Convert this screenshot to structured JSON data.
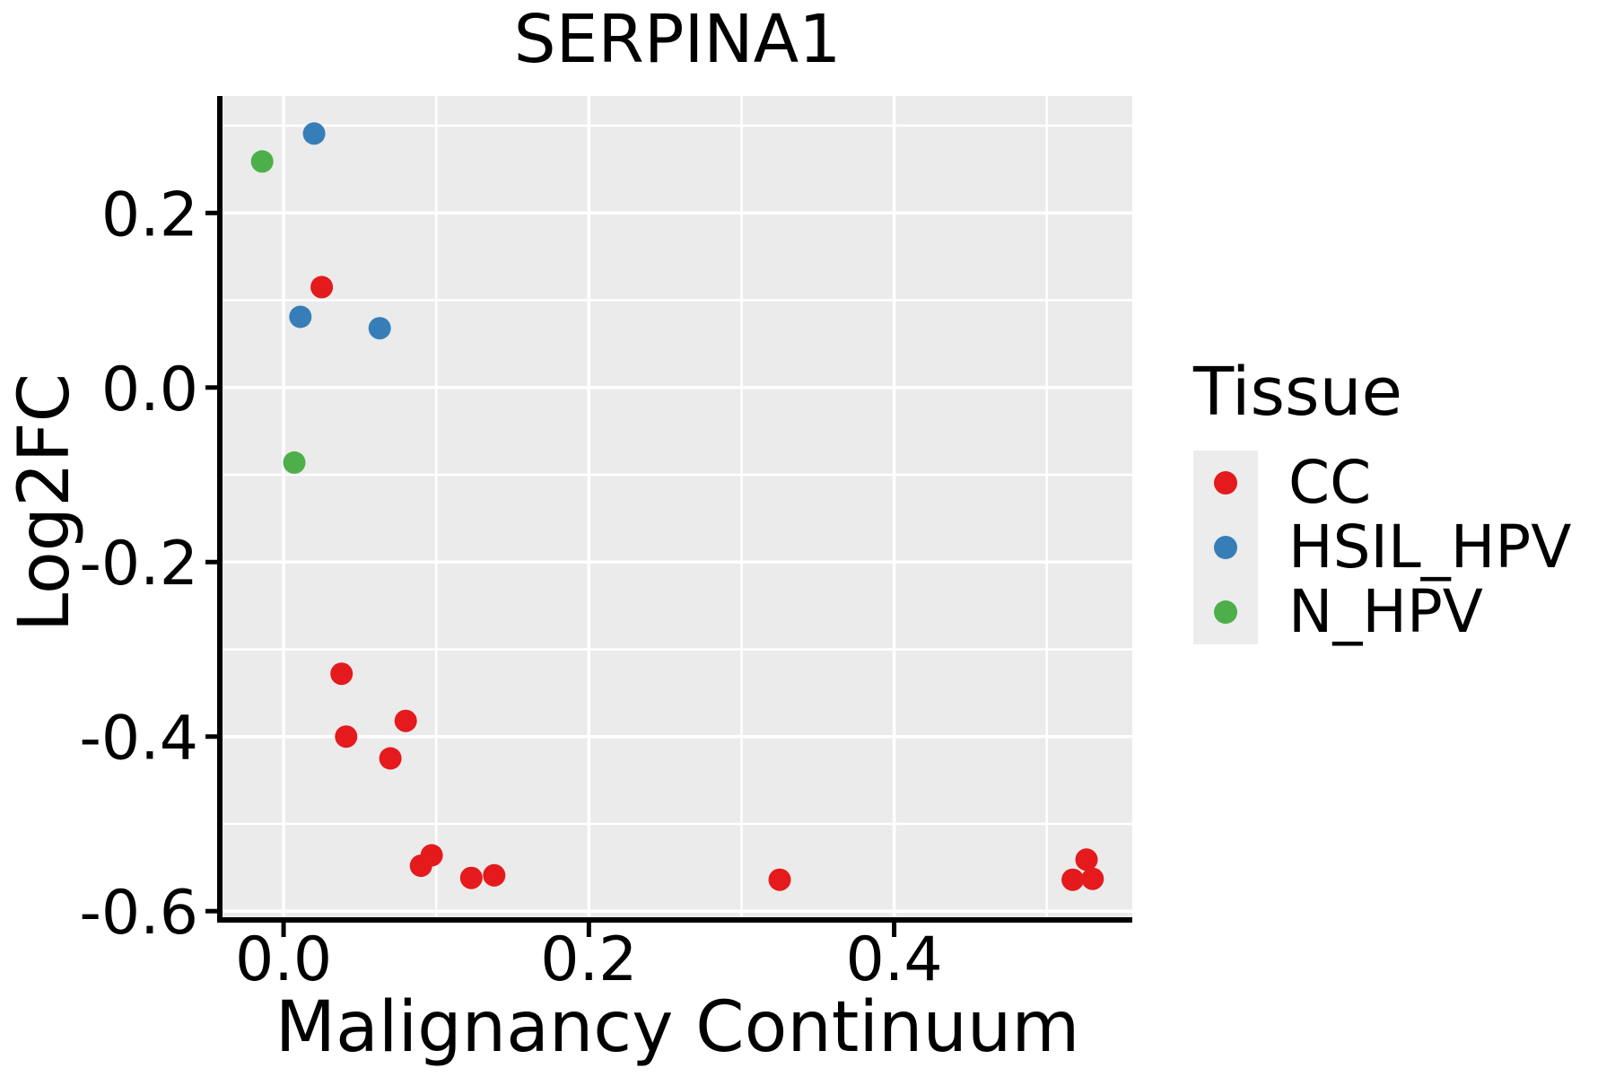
{
  "chart_data": {
    "type": "scatter",
    "title": "SERPINA1",
    "xlabel": "Malignancy Continuum",
    "ylabel": "Log2FC",
    "xlim": [
      -0.04,
      0.556
    ],
    "ylim": [
      -0.607,
      0.334
    ],
    "x_major_ticks": [
      0.0,
      0.2,
      0.4
    ],
    "x_tick_labels": [
      "0.0",
      "0.2",
      "0.4"
    ],
    "x_minor_ticks": [
      0.1,
      0.3,
      0.5
    ],
    "y_major_ticks": [
      0.2,
      0.0,
      -0.2,
      -0.4,
      -0.6
    ],
    "y_tick_labels": [
      "0.2",
      "0.0",
      "-0.2",
      "-0.4",
      "-0.6"
    ],
    "y_minor_ticks": [
      0.3,
      0.1,
      -0.1,
      -0.3,
      -0.5
    ],
    "grid": true,
    "panel_bg": "#EBEBEB",
    "grid_color": "#FFFFFF",
    "axis_color": "#000000",
    "legend": {
      "title": "Tissue",
      "position": "right",
      "key_bg": "#ECECEC"
    },
    "series": [
      {
        "name": "CC",
        "color": "#E41A1C",
        "points": [
          [
            0.025,
            0.115
          ],
          [
            0.038,
            -0.328
          ],
          [
            0.041,
            -0.4
          ],
          [
            0.07,
            -0.425
          ],
          [
            0.08,
            -0.382
          ],
          [
            0.09,
            -0.548
          ],
          [
            0.097,
            -0.536
          ],
          [
            0.123,
            -0.562
          ],
          [
            0.138,
            -0.559
          ],
          [
            0.325,
            -0.564
          ],
          [
            0.517,
            -0.564
          ],
          [
            0.526,
            -0.541
          ],
          [
            0.53,
            -0.563
          ]
        ]
      },
      {
        "name": "HSIL_HPV",
        "color": "#377EB8",
        "points": [
          [
            0.011,
            0.081
          ],
          [
            0.02,
            0.291
          ],
          [
            0.063,
            0.068
          ]
        ]
      },
      {
        "name": "N_HPV",
        "color": "#4DAF4A",
        "points": [
          [
            -0.014,
            0.259
          ],
          [
            0.007,
            -0.086
          ]
        ]
      }
    ]
  }
}
